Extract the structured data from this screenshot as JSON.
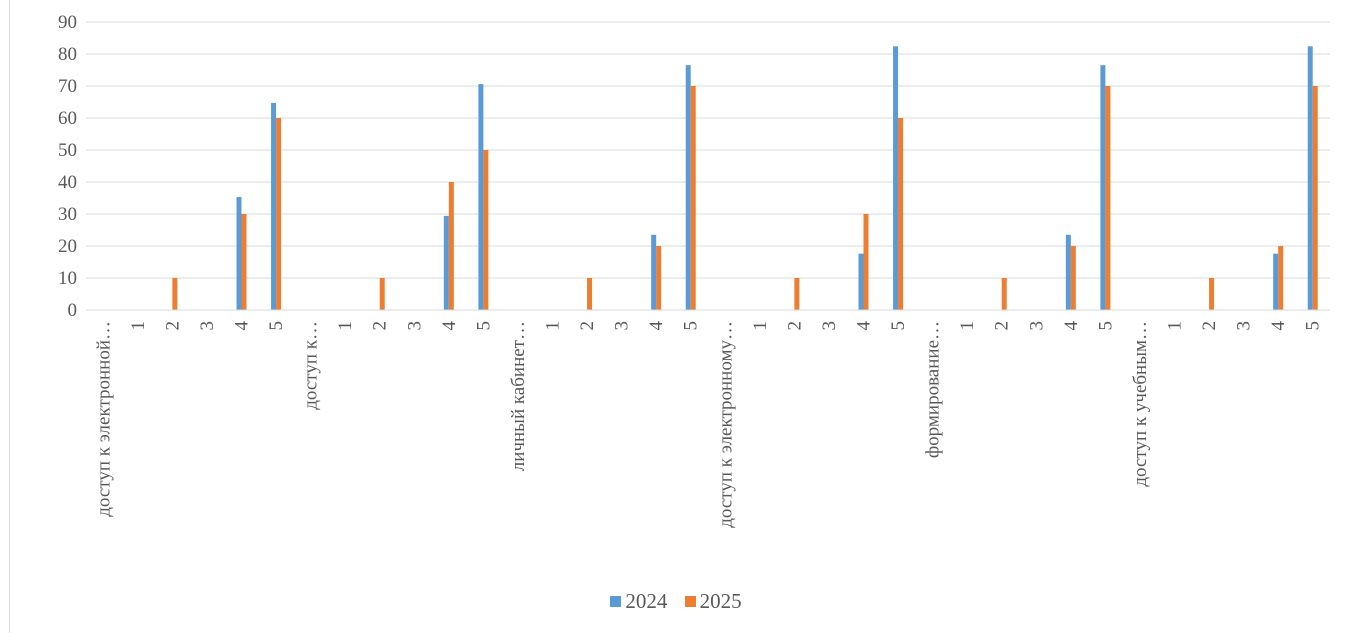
{
  "chart_data": {
    "type": "bar",
    "categories": [
      "доступ к электронной…",
      "1",
      "2",
      "3",
      "4",
      "5",
      "доступ к…",
      "1",
      "2",
      "3",
      "4",
      "5",
      "личный кабинет…",
      "1",
      "2",
      "3",
      "4",
      "5",
      "доступ к электронному…",
      "1",
      "2",
      "3",
      "4",
      "5",
      "формирование…",
      "1",
      "2",
      "3",
      "4",
      "5",
      "доступ к учебным…",
      "1",
      "2",
      "3",
      "4",
      "5"
    ],
    "series": [
      {
        "name": "2024",
        "color": "#5B9BD5",
        "values": [
          0,
          0,
          0,
          0,
          35.3,
          64.7,
          0,
          0,
          0,
          0,
          29.4,
          70.6,
          0,
          0,
          0,
          0,
          23.5,
          76.5,
          0,
          0,
          0,
          0,
          17.6,
          82.4,
          0,
          0,
          0,
          0,
          23.5,
          76.5,
          0,
          0,
          0,
          0,
          17.6,
          82.4
        ]
      },
      {
        "name": "2025",
        "color": "#ED7D31",
        "values": [
          0,
          0,
          10,
          0,
          30,
          60,
          0,
          0,
          10,
          0,
          40,
          50,
          0,
          0,
          10,
          0,
          20,
          70,
          0,
          0,
          10,
          0,
          30,
          60,
          0,
          0,
          10,
          0,
          20,
          70,
          0,
          0,
          10,
          0,
          20,
          70
        ]
      }
    ],
    "y_ticks": [
      "0",
      "10",
      "20",
      "30",
      "40",
      "50",
      "60",
      "70",
      "80",
      "90"
    ],
    "ylim": [
      0,
      90
    ],
    "grid": true,
    "legend_position": "bottom"
  },
  "legend": {
    "items": [
      {
        "label": "2024",
        "color": "#5B9BD5"
      },
      {
        "label": "2025",
        "color": "#ED7D31"
      }
    ]
  }
}
